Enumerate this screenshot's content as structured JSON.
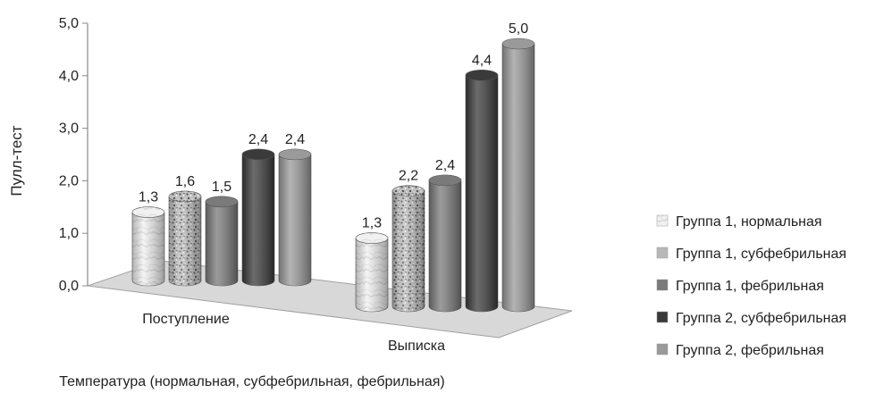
{
  "chart_data": {
    "type": "bar",
    "title": "",
    "xlabel": "Температура (нормальная, субфебрильная, фебрильная)",
    "ylabel": "Пулл-тест",
    "ylim": [
      0,
      5
    ],
    "y_ticks": [
      "0,0",
      "1,0",
      "2,0",
      "3,0",
      "4,0",
      "5,0"
    ],
    "categories": [
      "Поступление",
      "Выписка"
    ],
    "series": [
      {
        "name": "Группа 1, нормальная",
        "values": [
          1.3,
          1.3
        ],
        "labels": [
          "1,3",
          "1,3"
        ],
        "color": "#eeeeee",
        "pattern": "marble"
      },
      {
        "name": "Группа 1, субфебрильная",
        "values": [
          1.6,
          2.2
        ],
        "labels": [
          "1,6",
          "2,2"
        ],
        "color": "#aaaaaa",
        "pattern": "speckle"
      },
      {
        "name": "Группа 1, фебрильная",
        "values": [
          1.5,
          2.4
        ],
        "labels": [
          "1,5",
          "2,4"
        ],
        "color": "#7a7a7a",
        "pattern": "solid"
      },
      {
        "name": "Группа 2, субфебрильная",
        "values": [
          2.4,
          4.4
        ],
        "labels": [
          "2,4",
          "4,4"
        ],
        "color": "#3a3a3a",
        "pattern": "solid"
      },
      {
        "name": "Группа 2, фебрильная",
        "values": [
          2.4,
          5.0
        ],
        "labels": [
          "2,4",
          "5,0"
        ],
        "color": "#9a9a9a",
        "pattern": "solid"
      }
    ],
    "legend_position": "right",
    "grid": false,
    "style": "3d-cylinder"
  }
}
